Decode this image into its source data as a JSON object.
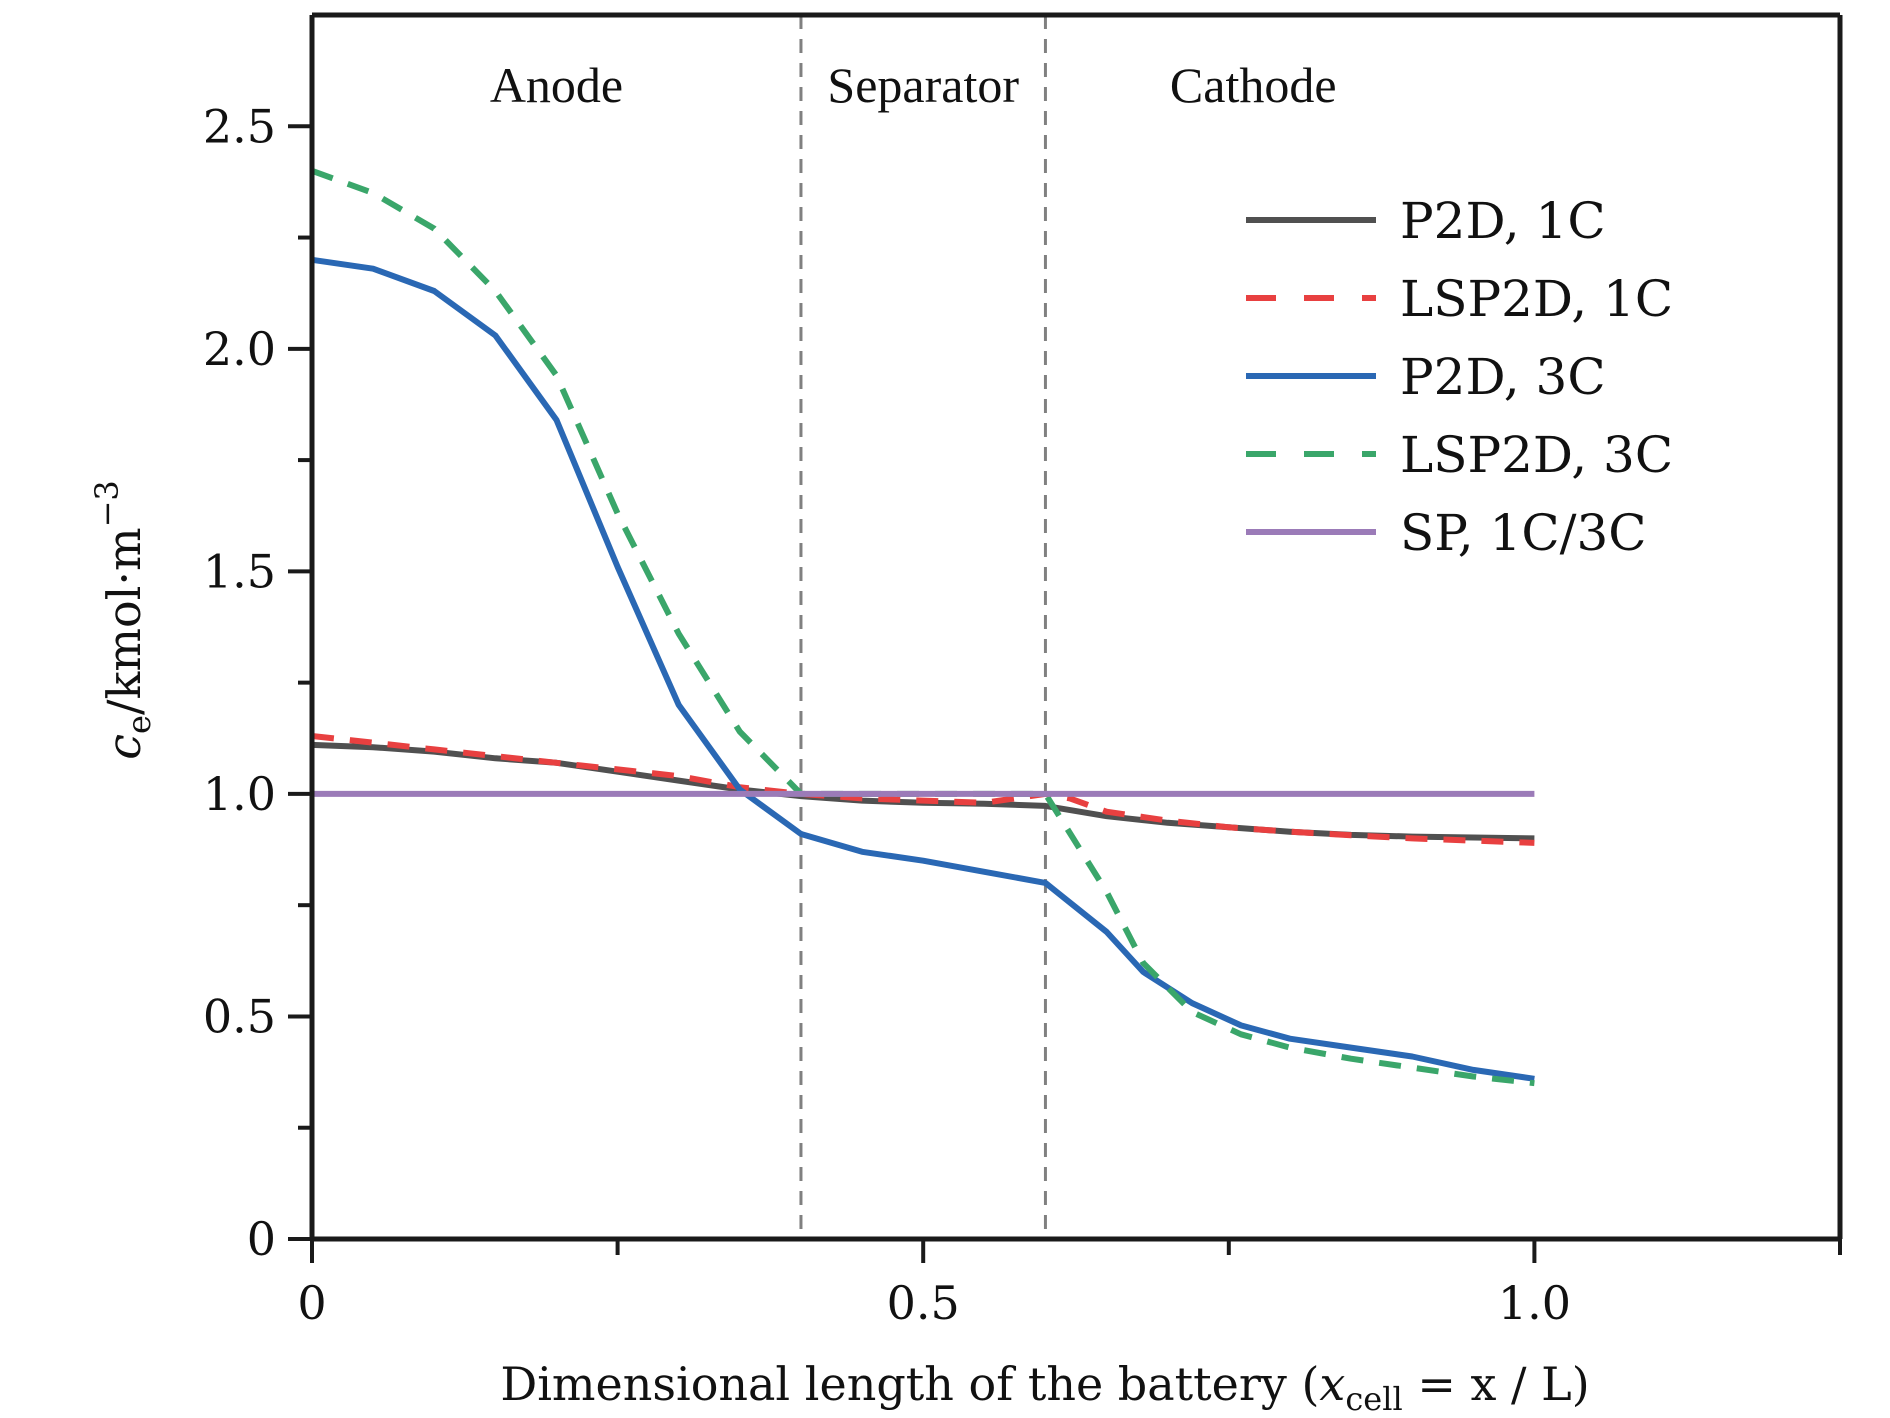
{
  "chart_data": {
    "type": "line",
    "title": "",
    "xlabel": "Dimensional length of the battery (x_cell = x/L)",
    "xlabel_parts": {
      "main": "Dimensional length of the battery (",
      "var": "x",
      "sub": "cell",
      "rest": " = x / L)"
    },
    "ylabel": "c_e/kmol·m^-3",
    "ylabel_parts": {
      "var": "c",
      "sub": "e",
      "unit": "/kmol·m",
      "sup": "−3"
    },
    "xlim": [
      0,
      1.25
    ],
    "ylim": [
      0,
      2.75
    ],
    "grid": false,
    "legend_position": "top-right",
    "x_ticks": [
      {
        "value": 0,
        "label": "0"
      },
      {
        "value": 0.25,
        "label": ""
      },
      {
        "value": 0.5,
        "label": "0.5"
      },
      {
        "value": 0.75,
        "label": ""
      },
      {
        "value": 1.0,
        "label": "1.0"
      },
      {
        "value": 1.25,
        "label": ""
      }
    ],
    "y_ticks": [
      {
        "value": 0,
        "label": "0"
      },
      {
        "value": 0.25,
        "label": ""
      },
      {
        "value": 0.5,
        "label": "0.5"
      },
      {
        "value": 0.75,
        "label": ""
      },
      {
        "value": 1.0,
        "label": "1.0"
      },
      {
        "value": 1.25,
        "label": ""
      },
      {
        "value": 1.5,
        "label": "1.5"
      },
      {
        "value": 1.75,
        "label": ""
      },
      {
        "value": 2.0,
        "label": "2.0"
      },
      {
        "value": 2.25,
        "label": ""
      },
      {
        "value": 2.5,
        "label": "2.5"
      }
    ],
    "region_dividers": [
      0.4,
      0.6
    ],
    "region_labels": [
      {
        "text": "Anode",
        "x": 0.2
      },
      {
        "text": "Separator",
        "x": 0.5
      },
      {
        "text": "Cathode",
        "x": 0.77
      }
    ],
    "series": [
      {
        "name": "P2D, 1C",
        "color": "#505050",
        "dash": "solid",
        "x": [
          0,
          0.05,
          0.1,
          0.15,
          0.2,
          0.25,
          0.3,
          0.35,
          0.4,
          0.45,
          0.5,
          0.55,
          0.6,
          0.65,
          0.7,
          0.75,
          0.8,
          0.85,
          0.9,
          0.95,
          1.0
        ],
        "y": [
          1.11,
          1.105,
          1.095,
          1.08,
          1.07,
          1.05,
          1.03,
          1.01,
          0.995,
          0.985,
          0.98,
          0.978,
          0.973,
          0.95,
          0.935,
          0.925,
          0.915,
          0.908,
          0.904,
          0.902,
          0.9
        ]
      },
      {
        "name": "LSP2D, 1C",
        "color": "#e84040",
        "dash": "dashed",
        "x": [
          0,
          0.05,
          0.1,
          0.15,
          0.2,
          0.25,
          0.3,
          0.35,
          0.4,
          0.45,
          0.5,
          0.55,
          0.6,
          0.62,
          0.65,
          0.7,
          0.75,
          0.8,
          0.85,
          0.9,
          0.95,
          1.0
        ],
        "y": [
          1.13,
          1.115,
          1.1,
          1.085,
          1.07,
          1.055,
          1.04,
          1.015,
          1.0,
          0.99,
          0.985,
          0.98,
          1.0,
          0.99,
          0.96,
          0.94,
          0.925,
          0.915,
          0.907,
          0.9,
          0.895,
          0.89
        ]
      },
      {
        "name": "P2D, 3C",
        "color": "#2a68b4",
        "dash": "solid",
        "x": [
          0,
          0.05,
          0.1,
          0.15,
          0.2,
          0.25,
          0.3,
          0.35,
          0.4,
          0.45,
          0.5,
          0.55,
          0.6,
          0.65,
          0.68,
          0.72,
          0.76,
          0.8,
          0.85,
          0.9,
          0.95,
          1.0
        ],
        "y": [
          2.2,
          2.18,
          2.13,
          2.03,
          1.84,
          1.51,
          1.2,
          1.01,
          0.91,
          0.87,
          0.85,
          0.825,
          0.8,
          0.69,
          0.6,
          0.53,
          0.48,
          0.45,
          0.43,
          0.41,
          0.38,
          0.36
        ]
      },
      {
        "name": "LSP2D, 3C",
        "color": "#3aa66a",
        "dash": "dashed",
        "x": [
          0,
          0.05,
          0.1,
          0.15,
          0.2,
          0.25,
          0.3,
          0.35,
          0.4,
          0.6,
          0.65,
          0.68,
          0.72,
          0.76,
          0.8,
          0.85,
          0.9,
          0.95,
          1.0
        ],
        "y": [
          2.4,
          2.35,
          2.27,
          2.13,
          1.94,
          1.63,
          1.36,
          1.14,
          1.0,
          1.0,
          0.78,
          0.62,
          0.51,
          0.46,
          0.43,
          0.405,
          0.385,
          0.365,
          0.35
        ]
      },
      {
        "name": "SP, 1C/3C",
        "color": "#9b7bb8",
        "dash": "solid",
        "x": [
          0,
          1.0
        ],
        "y": [
          1.0,
          1.0
        ]
      }
    ]
  },
  "colors": {
    "axis": "#1a1a1a",
    "divider": "#808080"
  }
}
